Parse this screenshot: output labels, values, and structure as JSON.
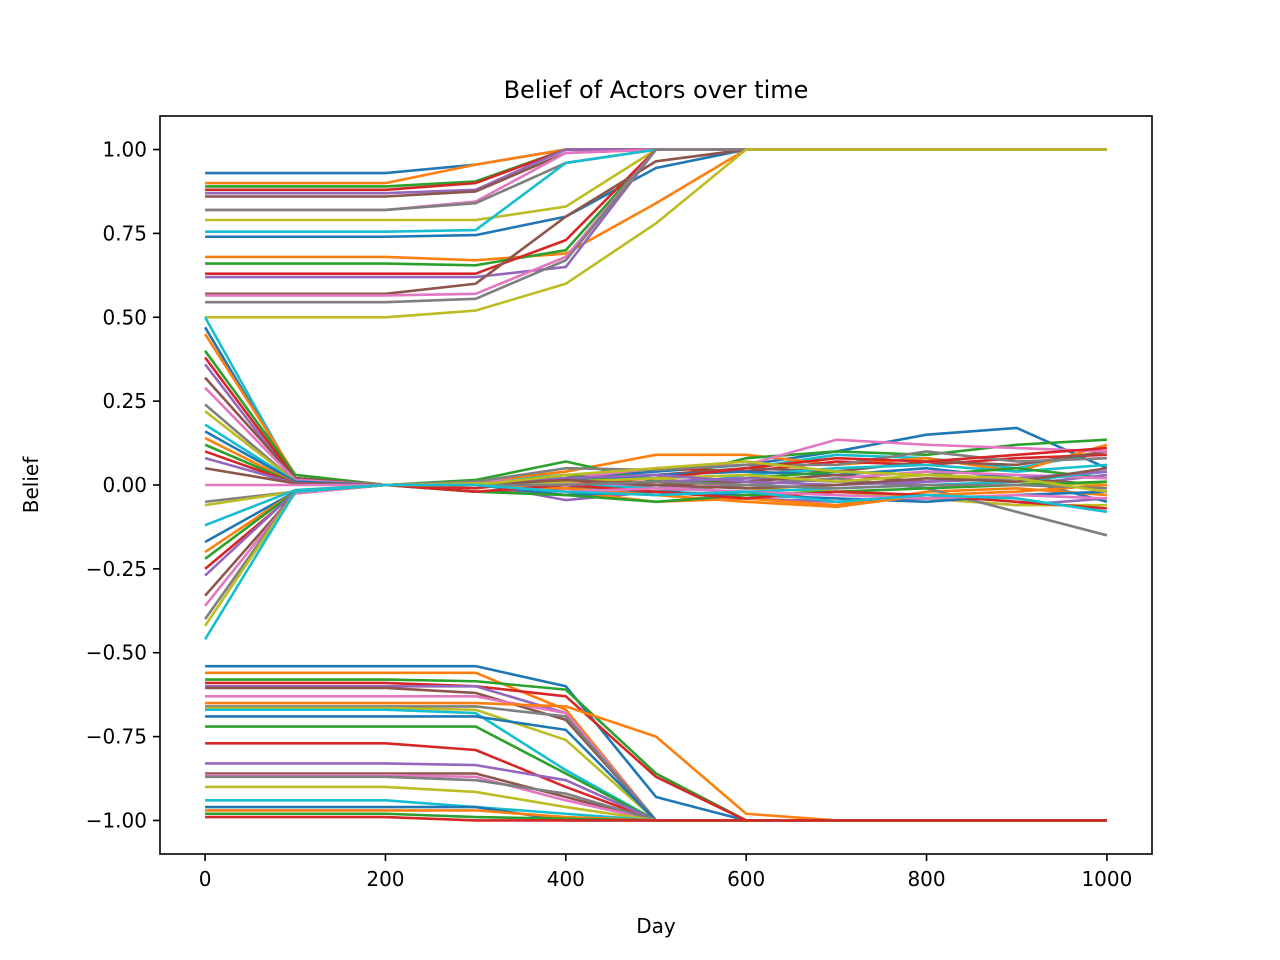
{
  "chart_data": {
    "type": "line",
    "title": "Belief of Actors over time",
    "xlabel": "Day",
    "ylabel": "Belief",
    "xlim": [
      -50,
      1050
    ],
    "ylim": [
      -1.1,
      1.1
    ],
    "xticks": [
      0,
      200,
      400,
      600,
      800,
      1000
    ],
    "xtick_labels": [
      "0",
      "200",
      "400",
      "600",
      "800",
      "1000"
    ],
    "yticks": [
      -1.0,
      -0.75,
      -0.5,
      -0.25,
      0.0,
      0.25,
      0.5,
      0.75,
      1.0
    ],
    "ytick_labels": [
      "−1.00",
      "−0.75",
      "−0.50",
      "−0.25",
      "0.00",
      "0.25",
      "0.50",
      "0.75",
      "1.00"
    ],
    "grid": false,
    "legend": false,
    "palette": [
      "#1f77b4",
      "#ff7f0e",
      "#2ca02c",
      "#d62728",
      "#9467bd",
      "#8c564b",
      "#e377c2",
      "#7f7f7f",
      "#bcbd22",
      "#17becf"
    ],
    "x": [
      0,
      100,
      200,
      300,
      400,
      500,
      600,
      700,
      800,
      900,
      1000
    ],
    "series": [
      {
        "values": [
          0.93,
          0.93,
          0.93,
          0.955,
          1.0,
          1.0,
          1.0,
          1.0,
          1.0,
          1.0,
          1.0
        ]
      },
      {
        "values": [
          0.9,
          0.9,
          0.9,
          0.955,
          1.0,
          1.0,
          1.0,
          1.0,
          1.0,
          1.0,
          1.0
        ]
      },
      {
        "values": [
          0.89,
          0.89,
          0.89,
          0.905,
          1.0,
          1.0,
          1.0,
          1.0,
          1.0,
          1.0,
          1.0
        ]
      },
      {
        "values": [
          0.88,
          0.88,
          0.88,
          0.9,
          1.0,
          1.0,
          1.0,
          1.0,
          1.0,
          1.0,
          1.0
        ]
      },
      {
        "values": [
          0.87,
          0.87,
          0.87,
          0.88,
          1.0,
          1.0,
          1.0,
          1.0,
          1.0,
          1.0,
          1.0
        ]
      },
      {
        "values": [
          0.86,
          0.86,
          0.86,
          0.875,
          0.99,
          1.0,
          1.0,
          1.0,
          1.0,
          1.0,
          1.0
        ]
      },
      {
        "values": [
          0.82,
          0.82,
          0.82,
          0.845,
          0.99,
          1.0,
          1.0,
          1.0,
          1.0,
          1.0,
          1.0
        ]
      },
      {
        "values": [
          0.82,
          0.82,
          0.82,
          0.84,
          0.96,
          1.0,
          1.0,
          1.0,
          1.0,
          1.0,
          1.0
        ]
      },
      {
        "values": [
          0.79,
          0.79,
          0.79,
          0.79,
          0.83,
          1.0,
          1.0,
          1.0,
          1.0,
          1.0,
          1.0
        ]
      },
      {
        "values": [
          0.755,
          0.755,
          0.755,
          0.76,
          0.96,
          1.0,
          1.0,
          1.0,
          1.0,
          1.0,
          1.0
        ]
      },
      {
        "values": [
          0.74,
          0.74,
          0.74,
          0.745,
          0.8,
          0.945,
          1.0,
          1.0,
          1.0,
          1.0,
          1.0
        ]
      },
      {
        "values": [
          0.68,
          0.68,
          0.68,
          0.67,
          0.69,
          0.84,
          1.0,
          1.0,
          1.0,
          1.0,
          1.0
        ]
      },
      {
        "values": [
          0.66,
          0.66,
          0.66,
          0.655,
          0.7,
          1.0,
          1.0,
          1.0,
          1.0,
          1.0,
          1.0
        ]
      },
      {
        "values": [
          0.63,
          0.63,
          0.63,
          0.63,
          0.73,
          1.0,
          1.0,
          1.0,
          1.0,
          1.0,
          1.0
        ]
      },
      {
        "values": [
          0.62,
          0.62,
          0.62,
          0.62,
          0.65,
          1.0,
          1.0,
          1.0,
          1.0,
          1.0,
          1.0
        ]
      },
      {
        "values": [
          0.57,
          0.57,
          0.57,
          0.6,
          0.8,
          0.965,
          1.0,
          1.0,
          1.0,
          1.0,
          1.0
        ]
      },
      {
        "values": [
          0.565,
          0.565,
          0.565,
          0.57,
          0.68,
          1.0,
          1.0,
          1.0,
          1.0,
          1.0,
          1.0
        ]
      },
      {
        "values": [
          0.545,
          0.545,
          0.545,
          0.555,
          0.67,
          1.0,
          1.0,
          1.0,
          1.0,
          1.0,
          1.0
        ]
      },
      {
        "values": [
          0.5,
          0.5,
          0.5,
          0.52,
          0.6,
          0.78,
          1.0,
          1.0,
          1.0,
          1.0,
          1.0
        ]
      },
      {
        "values": [
          0.5,
          0.02,
          0.0,
          0.01,
          0.03,
          0.02,
          0.05,
          0.09,
          0.08,
          0.05,
          0.1
        ]
      },
      {
        "values": [
          0.47,
          0.02,
          0.0,
          0.005,
          0.02,
          0.04,
          0.06,
          0.1,
          0.15,
          0.17,
          0.05
        ]
      },
      {
        "values": [
          0.45,
          0.03,
          0.0,
          0.01,
          0.04,
          0.09,
          0.09,
          0.06,
          0.08,
          0.04,
          0.12
        ]
      },
      {
        "values": [
          0.4,
          0.03,
          0.0,
          0.015,
          0.07,
          0.01,
          0.08,
          0.1,
          0.09,
          0.12,
          0.135
        ]
      },
      {
        "values": [
          0.38,
          0.02,
          0.0,
          -0.01,
          0.02,
          0.05,
          0.04,
          0.07,
          0.06,
          0.08,
          0.09
        ]
      },
      {
        "values": [
          0.36,
          0.01,
          0.0,
          0.005,
          -0.045,
          -0.02,
          -0.04,
          -0.05,
          -0.04,
          -0.06,
          -0.04
        ]
      },
      {
        "values": [
          0.32,
          0.02,
          0.0,
          0.01,
          0.015,
          0.03,
          0.05,
          0.04,
          0.07,
          0.06,
          0.1
        ]
      },
      {
        "values": [
          0.29,
          0.015,
          0.0,
          0.01,
          0.02,
          0.05,
          0.06,
          0.135,
          0.12,
          0.11,
          0.1
        ]
      },
      {
        "values": [
          0.24,
          0.01,
          0.0,
          0.01,
          0.05,
          0.045,
          0.06,
          0.06,
          0.1,
          0.07,
          0.08
        ]
      },
      {
        "values": [
          0.22,
          0.01,
          0.0,
          0.005,
          0.01,
          0.02,
          -0.01,
          -0.02,
          -0.04,
          -0.06,
          -0.06
        ]
      },
      {
        "values": [
          0.18,
          0.01,
          0.0,
          0.0,
          0.02,
          -0.01,
          0.03,
          0.05,
          0.06,
          0.04,
          0.06
        ]
      },
      {
        "values": [
          0.16,
          0.01,
          0.0,
          0.0,
          0.01,
          0.03,
          0.04,
          0.03,
          0.05,
          0.02,
          -0.05
        ]
      },
      {
        "values": [
          0.14,
          0.005,
          0.0,
          0.0,
          -0.02,
          -0.05,
          -0.04,
          -0.06,
          -0.02,
          -0.01,
          -0.03
        ]
      },
      {
        "values": [
          0.12,
          0.005,
          0.0,
          0.0,
          0.03,
          0.0,
          0.02,
          0.04,
          0.03,
          0.05,
          0.02
        ]
      },
      {
        "values": [
          0.1,
          0.005,
          0.0,
          0.0,
          0.005,
          0.02,
          0.05,
          0.08,
          0.07,
          0.09,
          0.11
        ]
      },
      {
        "values": [
          0.08,
          0.005,
          0.0,
          0.0,
          -0.01,
          0.01,
          0.02,
          0.01,
          0.0,
          0.0,
          0.03
        ]
      },
      {
        "values": [
          0.05,
          0.005,
          0.0,
          -0.02,
          -0.01,
          0.0,
          0.01,
          0.03,
          0.01,
          0.02,
          0.0
        ]
      },
      {
        "values": [
          0.0,
          0.0,
          0.0,
          0.0,
          0.005,
          -0.01,
          0.0,
          0.02,
          0.04,
          0.03,
          0.02
        ]
      },
      {
        "values": [
          -0.05,
          -0.02,
          0.0,
          0.0,
          -0.01,
          -0.02,
          0.0,
          0.02,
          -0.01,
          -0.08,
          -0.15
        ]
      },
      {
        "values": [
          -0.06,
          -0.02,
          0.0,
          0.0,
          0.01,
          0.02,
          0.03,
          0.01,
          0.03,
          0.01,
          0.0
        ]
      },
      {
        "values": [
          -0.12,
          -0.015,
          0.0,
          0.0,
          0.0,
          -0.01,
          -0.02,
          -0.01,
          0.0,
          0.01,
          0.04
        ]
      },
      {
        "values": [
          -0.17,
          -0.02,
          0.0,
          0.0,
          -0.03,
          -0.02,
          -0.03,
          -0.04,
          -0.05,
          -0.03,
          -0.02
        ]
      },
      {
        "values": [
          -0.2,
          -0.02,
          0.0,
          0.0,
          -0.01,
          -0.03,
          -0.05,
          -0.065,
          -0.03,
          -0.02,
          0.0
        ]
      },
      {
        "values": [
          -0.22,
          -0.02,
          0.0,
          -0.02,
          -0.03,
          -0.05,
          -0.03,
          -0.02,
          -0.01,
          0.0,
          0.01
        ]
      },
      {
        "values": [
          -0.25,
          -0.025,
          0.0,
          -0.02,
          0.0,
          -0.02,
          -0.04,
          -0.02,
          -0.03,
          -0.05,
          -0.07
        ]
      },
      {
        "values": [
          -0.27,
          -0.02,
          0.0,
          0.0,
          0.02,
          0.03,
          0.01,
          0.0,
          0.01,
          0.02,
          0.04
        ]
      },
      {
        "values": [
          -0.33,
          -0.025,
          0.0,
          0.0,
          0.015,
          0.0,
          -0.01,
          0.0,
          0.02,
          0.01,
          0.05
        ]
      },
      {
        "values": [
          -0.36,
          -0.025,
          0.0,
          0.0,
          -0.02,
          -0.01,
          -0.02,
          -0.03,
          -0.04,
          -0.03,
          -0.04
        ]
      },
      {
        "values": [
          -0.4,
          -0.02,
          0.0,
          0.0,
          0.0,
          0.01,
          0.0,
          -0.01,
          0.0,
          0.0,
          -0.01
        ]
      },
      {
        "values": [
          -0.42,
          -0.02,
          0.0,
          0.0,
          0.03,
          0.05,
          0.07,
          0.04,
          0.03,
          0.02,
          -0.02
        ]
      },
      {
        "values": [
          -0.46,
          -0.02,
          0.0,
          0.0,
          -0.02,
          -0.03,
          -0.02,
          -0.05,
          -0.03,
          -0.04,
          -0.08
        ]
      },
      {
        "values": [
          -0.54,
          -0.54,
          -0.54,
          -0.54,
          -0.6,
          -0.93,
          -1.0,
          -1.0,
          -1.0,
          -1.0,
          -1.0
        ]
      },
      {
        "values": [
          -0.56,
          -0.56,
          -0.56,
          -0.56,
          -0.67,
          -1.0,
          -1.0,
          -1.0,
          -1.0,
          -1.0,
          -1.0
        ]
      },
      {
        "values": [
          -0.58,
          -0.58,
          -0.58,
          -0.585,
          -0.61,
          -0.86,
          -1.0,
          -1.0,
          -1.0,
          -1.0,
          -1.0
        ]
      },
      {
        "values": [
          -0.59,
          -0.59,
          -0.59,
          -0.6,
          -0.63,
          -0.87,
          -1.0,
          -1.0,
          -1.0,
          -1.0,
          -1.0
        ]
      },
      {
        "values": [
          -0.6,
          -0.6,
          -0.6,
          -0.6,
          -0.68,
          -1.0,
          -1.0,
          -1.0,
          -1.0,
          -1.0,
          -1.0
        ]
      },
      {
        "values": [
          -0.605,
          -0.605,
          -0.605,
          -0.62,
          -0.7,
          -1.0,
          -1.0,
          -1.0,
          -1.0,
          -1.0,
          -1.0
        ]
      },
      {
        "values": [
          -0.63,
          -0.63,
          -0.63,
          -0.63,
          -0.68,
          -1.0,
          -1.0,
          -1.0,
          -1.0,
          -1.0,
          -1.0
        ]
      },
      {
        "values": [
          -0.66,
          -0.66,
          -0.66,
          -0.66,
          -0.69,
          -1.0,
          -1.0,
          -1.0,
          -1.0,
          -1.0,
          -1.0
        ]
      },
      {
        "values": [
          -0.665,
          -0.665,
          -0.665,
          -0.67,
          -0.76,
          -1.0,
          -1.0,
          -1.0,
          -1.0,
          -1.0,
          -1.0
        ]
      },
      {
        "values": [
          -0.67,
          -0.67,
          -0.67,
          -0.68,
          -0.85,
          -1.0,
          -1.0,
          -1.0,
          -1.0,
          -1.0,
          -1.0
        ]
      },
      {
        "values": [
          -0.69,
          -0.69,
          -0.69,
          -0.69,
          -0.73,
          -1.0,
          -1.0,
          -1.0,
          -1.0,
          -1.0,
          -1.0
        ]
      },
      {
        "values": [
          -0.65,
          -0.65,
          -0.65,
          -0.65,
          -0.66,
          -0.75,
          -0.98,
          -1.0,
          -1.0,
          -1.0,
          -1.0
        ]
      },
      {
        "values": [
          -0.72,
          -0.72,
          -0.72,
          -0.72,
          -0.86,
          -1.0,
          -1.0,
          -1.0,
          -1.0,
          -1.0,
          -1.0
        ]
      },
      {
        "values": [
          -0.77,
          -0.77,
          -0.77,
          -0.79,
          -0.9,
          -1.0,
          -1.0,
          -1.0,
          -1.0,
          -1.0,
          -1.0
        ]
      },
      {
        "values": [
          -0.83,
          -0.83,
          -0.83,
          -0.835,
          -0.88,
          -1.0,
          -1.0,
          -1.0,
          -1.0,
          -1.0,
          -1.0
        ]
      },
      {
        "values": [
          -0.86,
          -0.86,
          -0.86,
          -0.86,
          -0.93,
          -1.0,
          -1.0,
          -1.0,
          -1.0,
          -1.0,
          -1.0
        ]
      },
      {
        "values": [
          -0.865,
          -0.865,
          -0.865,
          -0.87,
          -0.94,
          -1.0,
          -1.0,
          -1.0,
          -1.0,
          -1.0,
          -1.0
        ]
      },
      {
        "values": [
          -0.87,
          -0.87,
          -0.87,
          -0.88,
          -0.92,
          -1.0,
          -1.0,
          -1.0,
          -1.0,
          -1.0,
          -1.0
        ]
      },
      {
        "values": [
          -0.9,
          -0.9,
          -0.9,
          -0.915,
          -0.96,
          -1.0,
          -1.0,
          -1.0,
          -1.0,
          -1.0,
          -1.0
        ]
      },
      {
        "values": [
          -0.94,
          -0.94,
          -0.94,
          -0.96,
          -0.98,
          -1.0,
          -1.0,
          -1.0,
          -1.0,
          -1.0,
          -1.0
        ]
      },
      {
        "values": [
          -0.96,
          -0.96,
          -0.96,
          -0.96,
          -1.0,
          -1.0,
          -1.0,
          -1.0,
          -1.0,
          -1.0,
          -1.0
        ]
      },
      {
        "values": [
          -0.97,
          -0.97,
          -0.97,
          -0.97,
          -0.99,
          -1.0,
          -1.0,
          -1.0,
          -1.0,
          -1.0,
          -1.0
        ]
      },
      {
        "values": [
          -0.98,
          -0.98,
          -0.98,
          -0.99,
          -0.995,
          -1.0,
          -1.0,
          -1.0,
          -1.0,
          -1.0,
          -1.0
        ]
      },
      {
        "values": [
          -0.99,
          -0.99,
          -0.99,
          -1.0,
          -1.0,
          -1.0,
          -1.0,
          -1.0,
          -1.0,
          -1.0,
          -1.0
        ]
      }
    ]
  }
}
